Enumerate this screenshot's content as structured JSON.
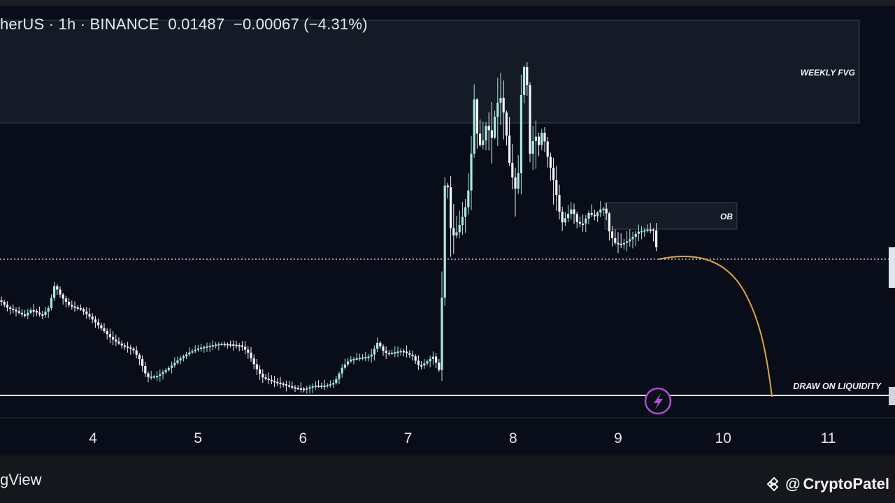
{
  "header": {
    "symbol": "herUS",
    "separator1": " · ",
    "interval": "1h",
    "separator2": " · ",
    "exchange": "BINANCE",
    "last_price": "0.01487",
    "change": "−0.00067",
    "change_pct": "(−4.31%)"
  },
  "footer": {
    "brand": "gView",
    "watermark_at": "@",
    "watermark_name": "CryptoPatel"
  },
  "colors": {
    "background": "#090d1a",
    "candle_up": "#a9e8de",
    "candle_down": "#f2f5f8",
    "zone_fill": "#141a26",
    "zone_border": "#3a4150",
    "curve": "#e0a43a",
    "liquidity_line": "#e6e8ee",
    "bolt_circle": "#b04fd0"
  },
  "chart_data": {
    "type": "candlestick",
    "x_ticks": [
      "4",
      "5",
      "6",
      "7",
      "8",
      "9",
      "10",
      "11"
    ],
    "price_line_style": "dotted",
    "annotations": [
      {
        "label": "WEEKLY FVG",
        "kind": "zone"
      },
      {
        "label": "OB",
        "kind": "zone"
      },
      {
        "label": "DRAW ON LIQUIDITY",
        "kind": "horizontal-line"
      }
    ],
    "projection": "curve-down-to-liquidity",
    "grid": false
  }
}
